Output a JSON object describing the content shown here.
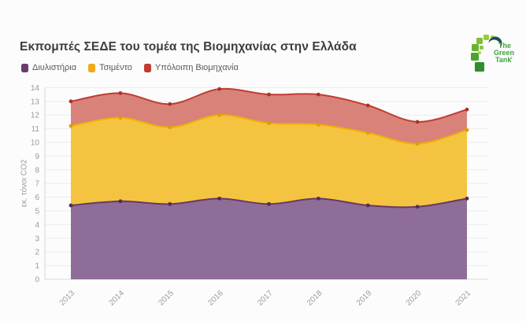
{
  "title": "Εκπομπές ΣΕΔΕ του τομέα της Βιομηχανίας στην Ελλάδα",
  "legend": {
    "items": [
      {
        "label": "Διυλιστήρια",
        "color": "#6b3a6f"
      },
      {
        "label": "Τσιμέντο",
        "color": "#f0a81c"
      },
      {
        "label": "Υπόλοιπη Βιομηχανία",
        "color": "#c23a30"
      }
    ]
  },
  "logo": {
    "lines": [
      "The",
      "Green",
      "Tank"
    ],
    "registered": "®",
    "text_color": "#3fa33c",
    "square_colors": [
      "#2f8d2f",
      "#49a430",
      "#65b42f",
      "#7fc036",
      "#97cc3f",
      "#b2d84d",
      "#8cc63f",
      "#aad54f"
    ],
    "crescent_color": "#1d5052"
  },
  "chart_data": {
    "type": "area",
    "stacked": true,
    "title": "Εκπομπές ΣΕΔΕ του τομέα της Βιομηχανίας στην Ελλάδα",
    "categories": [
      "2013",
      "2014",
      "2015",
      "2016",
      "2017",
      "2018",
      "2019",
      "2020",
      "2021"
    ],
    "series": [
      {
        "name": "Διυλιστήρια",
        "values": [
          5.4,
          5.7,
          5.5,
          5.9,
          5.5,
          5.9,
          5.4,
          5.3,
          5.9
        ],
        "line_color": "#673968",
        "fill_color": "#8e6d98",
        "dot_color": "#532b55"
      },
      {
        "name": "Τσιμέντο",
        "values": [
          5.8,
          6.1,
          5.6,
          6.1,
          5.9,
          5.4,
          5.3,
          4.6,
          5.0
        ],
        "line_color": "#eeb104",
        "fill_color": "#f4c440",
        "dot_color": "#e09d00"
      },
      {
        "name": "Υπόλοιπη Βιομηχανία",
        "values": [
          1.8,
          1.8,
          1.7,
          1.9,
          2.1,
          2.2,
          2.0,
          1.6,
          1.5
        ],
        "line_color": "#c03d30",
        "fill_color": "#d9827a",
        "dot_color": "#a93226"
      }
    ],
    "stacked_totals": [
      13.0,
      13.6,
      12.8,
      13.9,
      13.5,
      13.5,
      12.7,
      11.5,
      12.4
    ],
    "xlabel": "",
    "ylabel": "εκ. τόνοι CO2",
    "ylim": [
      0,
      14
    ],
    "ytick_step": 1,
    "grid": true,
    "legend_position": "top-left"
  },
  "theme": {
    "background": "#fcfcfc",
    "grid_color": "#ececec",
    "axis_color": "#d9d9d9",
    "tick_text_color": "#9b9b9b",
    "title_color": "#3d3d3d",
    "legend_text_color": "#5a5a5a"
  }
}
